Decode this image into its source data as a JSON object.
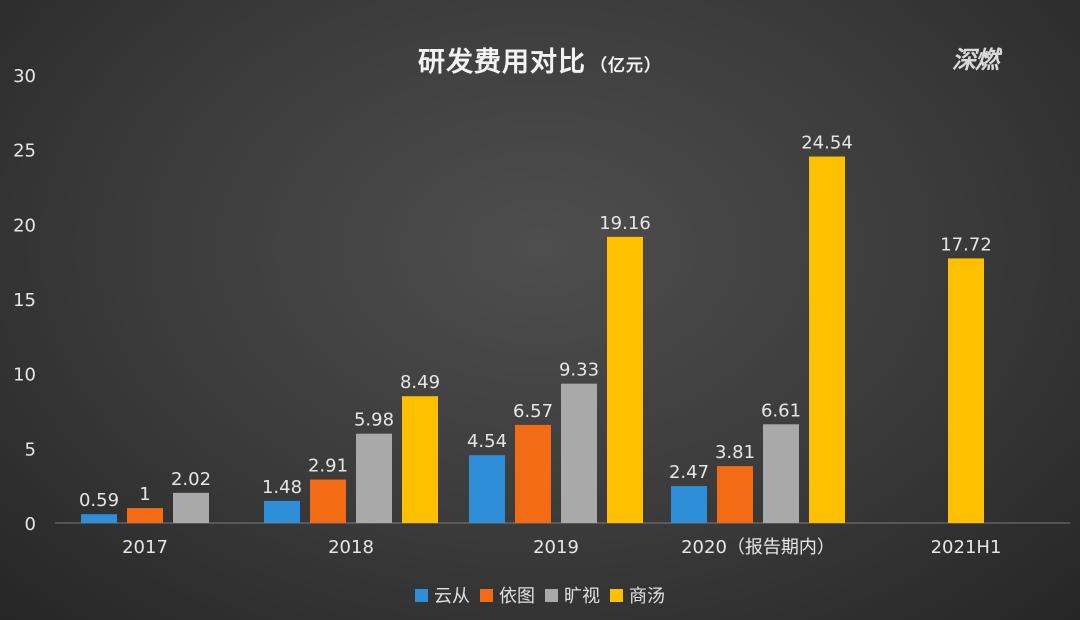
{
  "chart_data": {
    "type": "bar",
    "title": "研发费用对比",
    "unit": "（亿元）",
    "categories": [
      "2017",
      "2018",
      "2019",
      "2020（报告期内）",
      "2021H1"
    ],
    "series": [
      {
        "name": "云从",
        "color": "#2e8fd8",
        "values": [
          0.59,
          1.48,
          4.54,
          2.47,
          null
        ]
      },
      {
        "name": "依图",
        "color": "#f46b16",
        "values": [
          1,
          2.91,
          6.57,
          3.81,
          null
        ]
      },
      {
        "name": "旷视",
        "color": "#a9a9a9",
        "values": [
          2.02,
          5.98,
          9.33,
          6.61,
          null
        ]
      },
      {
        "name": "商汤",
        "color": "#ffc000",
        "values": [
          null,
          8.49,
          19.16,
          24.54,
          17.72
        ]
      }
    ],
    "data_labels": [
      [
        "0.59",
        "1.48",
        "4.54",
        "2.47",
        ""
      ],
      [
        "1",
        "2.91",
        "6.57",
        "3.81",
        ""
      ],
      [
        "2.02",
        "5.98",
        "9.33",
        "6.61",
        ""
      ],
      [
        "",
        "8.49",
        "19.16",
        "24.54",
        "17.72"
      ]
    ],
    "yticks": [
      "0",
      "5",
      "10",
      "15",
      "20",
      "25",
      "30"
    ],
    "ylim": [
      0,
      30
    ],
    "grid": false,
    "legend_position": "bottom"
  },
  "watermark": "深燃"
}
